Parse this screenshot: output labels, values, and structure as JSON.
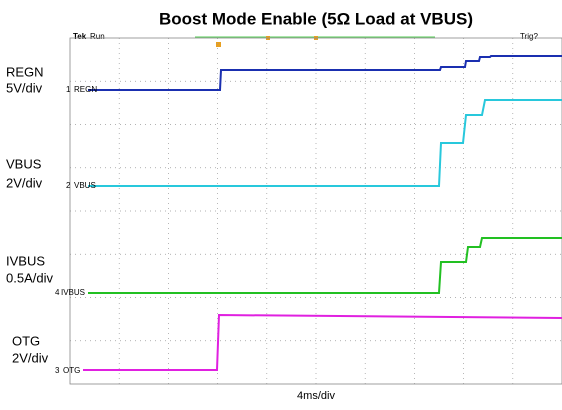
{
  "header": {
    "title": "Boost Mode Enable (5Ω Load at VBUS)",
    "status_brand": "Tek",
    "status_state": "Run",
    "trigger": "Trig?"
  },
  "channels": [
    {
      "name": "REGN",
      "scale": "5V/div",
      "tag_number": "1",
      "tag_label": "REGN"
    },
    {
      "name": "VBUS",
      "scale": "2V/div",
      "tag_number": "2",
      "tag_label": "VBUS"
    },
    {
      "name": "IVBUS",
      "scale": "0.5A/div",
      "tag_number": "4",
      "tag_label": "IVBUS"
    },
    {
      "name": "OTG",
      "scale": "2V/div",
      "tag_number": "3",
      "tag_label": "OTG"
    }
  ],
  "timebase": "4ms/div"
}
